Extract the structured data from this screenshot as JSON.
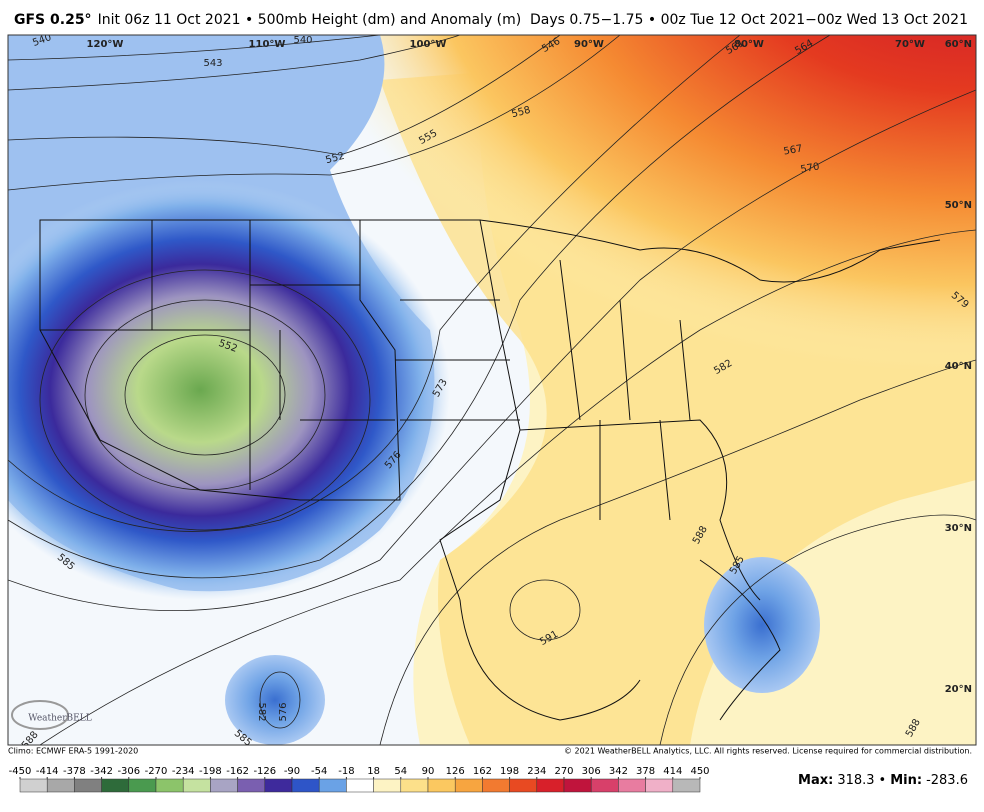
{
  "header": {
    "model": "GFS 0.25°",
    "description": "Init 06z 11 Oct 2021 • 500mb Height (dm) and Anomaly (m)",
    "valid": "Days 0.75−1.75 • 00z Tue 12 Oct 2021−00z Wed 13 Oct 2021"
  },
  "map": {
    "longitude_labels": [
      "120°W",
      "110°W",
      "100°W",
      "90°W",
      "80°W",
      "70°W"
    ],
    "latitude_labels": [
      "60°N",
      "50°N",
      "40°N",
      "30°N",
      "20°N"
    ],
    "contour_labels": [
      "540",
      "543",
      "540",
      "552",
      "555",
      "558",
      "546",
      "561",
      "564",
      "567",
      "570",
      "552",
      "573",
      "576",
      "579",
      "582",
      "588",
      "585",
      "585",
      "591",
      "582",
      "576",
      "585",
      "588",
      "588"
    ],
    "logo": "WeatherBELL"
  },
  "footer": {
    "climo": "Climo: ECMWF ERA-5 1991-2020",
    "copyright": "© 2021 WeatherBELL Analytics, LLC. All rights reserved. License required for commercial distribution."
  },
  "colorbar": {
    "ticks": [
      -450,
      -414,
      -378,
      -342,
      -306,
      -270,
      -234,
      -198,
      -162,
      -126,
      -90,
      -54,
      -18,
      18,
      54,
      90,
      126,
      162,
      198,
      234,
      270,
      306,
      342,
      378,
      414,
      450
    ],
    "colors": [
      "#d0d0d0",
      "#a8a8a8",
      "#808080",
      "#2e6b3a",
      "#4a9a4f",
      "#8cc46a",
      "#c5e2a0",
      "#a8a4c4",
      "#7a5fb0",
      "#3e2a9c",
      "#2e55c8",
      "#6aa2e6",
      "#ffffff",
      "#fdf3c4",
      "#fce08a",
      "#fbc860",
      "#f7a540",
      "#f27a30",
      "#e84a22",
      "#d8202a",
      "#c0143c",
      "#d8406a",
      "#e87ca0",
      "#f0b0c8",
      "#b8b8b8"
    ]
  },
  "stats": {
    "max_label": "Max:",
    "max": 318.3,
    "separator": "•",
    "min_label": "Min:",
    "min": -283.6
  }
}
